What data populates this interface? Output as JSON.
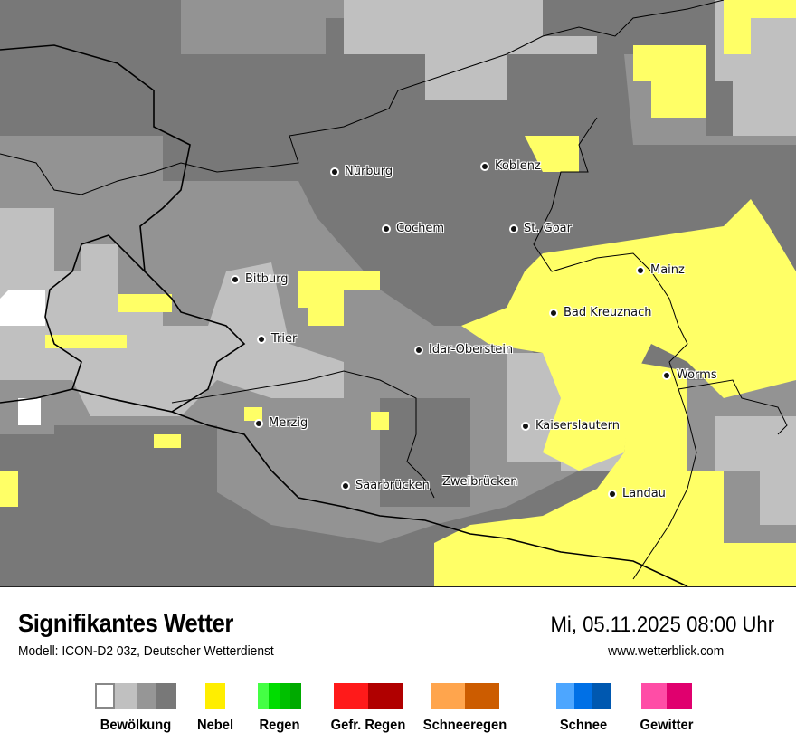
{
  "map": {
    "cities": [
      {
        "name": "Nürburg"
      },
      {
        "name": "Koblenz"
      },
      {
        "name": "Cochem"
      },
      {
        "name": "St. Goar"
      },
      {
        "name": "Mainz"
      },
      {
        "name": "Bitburg"
      },
      {
        "name": "Bad Kreuznach"
      },
      {
        "name": "Trier"
      },
      {
        "name": "Idar-Oberstein"
      },
      {
        "name": "Worms"
      },
      {
        "name": "Merzig"
      },
      {
        "name": "Kaiserslautern"
      },
      {
        "name": "Saarbrücken"
      },
      {
        "name": "Zweibrücken"
      },
      {
        "name": "Landau"
      }
    ],
    "colors": {
      "cloud_dark": "#787878",
      "cloud_mid": "#939393",
      "cloud_light": "#c0c0c0",
      "fog": "#ffff66"
    }
  },
  "footer": {
    "title": "Signifikantes Wetter",
    "model": "Modell: ICON-D2 03z, Deutscher Wetterdienst",
    "datetime": "Mi, 05.11.2025 08:00 Uhr",
    "website": "www.wetterblick.com"
  },
  "legend": [
    {
      "label": "Bewölkung",
      "colors": [
        "#ffffff",
        "#c0c0c0",
        "#969696",
        "#787878"
      ]
    },
    {
      "label": "Nebel",
      "colors": [
        "#ffee00"
      ]
    },
    {
      "label": "Regen",
      "colors": [
        "#44ff44",
        "#00dd00",
        "#00c000",
        "#00aa00"
      ]
    },
    {
      "label": "Gefr. Regen",
      "colors": [
        "#ff1a1a",
        "#b00000"
      ]
    },
    {
      "label": "Schneeregen",
      "colors": [
        "#ffa54d",
        "#cc5c00"
      ]
    },
    {
      "label": "Schnee",
      "colors": [
        "#4da6ff",
        "#0070e6",
        "#0058b0"
      ]
    },
    {
      "label": "Gewitter",
      "colors": [
        "#ff4da6",
        "#e0006e"
      ]
    }
  ]
}
